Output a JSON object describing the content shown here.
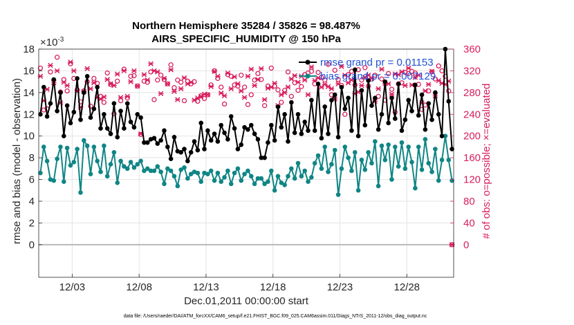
{
  "chart_data": {
    "type": "line",
    "title": "Northern Hemisphere 35284 / 35826 = 98.487%",
    "subtitle": "AIRS_SPECIFIC_HUMIDITY @ 150 hPa",
    "xlabel": "Dec.01,2011 00:00:00 start",
    "ylabel_left": "rmse and bias (model - observation)",
    "ylabel_right": "# of obs: o=possible; ×=evaluated",
    "left_scale_label": "×10",
    "left_scale_exponent": "-3",
    "footnote": "data file: /Users/raeder/DAI/ATM_forcXX/CAM6_setup/f.e21.FHIST_BGC.f09_025.CAM6assim.011/Diags_NTrS_2011-12/obs_diag_output.nc",
    "xlim": [
      0.5,
      31.5
    ],
    "ylim_left": [
      -3,
      18
    ],
    "ylim_right": [
      -60,
      360
    ],
    "x_ticks": [
      {
        "value": 3,
        "label": "12/03"
      },
      {
        "value": 8,
        "label": "12/08"
      },
      {
        "value": 13,
        "label": "12/13"
      },
      {
        "value": 18,
        "label": "12/18"
      },
      {
        "value": 23,
        "label": "12/23"
      },
      {
        "value": 28,
        "label": "12/28"
      }
    ],
    "y_ticks_left": [
      0,
      2,
      4,
      6,
      8,
      10,
      12,
      14,
      16,
      18
    ],
    "y_ticks_right": [
      0,
      40,
      80,
      120,
      160,
      200,
      240,
      280,
      320,
      360
    ],
    "grid": true,
    "legend_position": "top-right",
    "colors": {
      "rmse": "#000000",
      "bias": "#108585",
      "obs": "#d81e5b",
      "legend_text": "#1f4fd8",
      "zero_line": "#b8b8b8"
    },
    "x": [
      0.625,
      0.875,
      1.125,
      1.375,
      1.625,
      1.875,
      2.125,
      2.375,
      2.625,
      2.875,
      3.125,
      3.375,
      3.625,
      3.875,
      4.125,
      4.375,
      4.625,
      4.875,
      5.125,
      5.375,
      5.625,
      5.875,
      6.125,
      6.375,
      6.625,
      6.875,
      7.125,
      7.375,
      7.625,
      7.875,
      8.125,
      8.375,
      8.625,
      8.875,
      9.125,
      9.375,
      9.625,
      9.875,
      10.125,
      10.375,
      10.625,
      10.875,
      11.125,
      11.375,
      11.625,
      11.875,
      12.125,
      12.375,
      12.625,
      12.875,
      13.125,
      13.375,
      13.625,
      13.875,
      14.125,
      14.375,
      14.625,
      14.875,
      15.125,
      15.375,
      15.625,
      15.875,
      16.125,
      16.375,
      16.625,
      16.875,
      17.125,
      17.375,
      17.625,
      17.875,
      18.125,
      18.375,
      18.625,
      18.875,
      19.125,
      19.375,
      19.625,
      19.875,
      20.125,
      20.375,
      20.625,
      20.875,
      21.125,
      21.375,
      21.625,
      21.875,
      22.125,
      22.375,
      22.625,
      22.875,
      23.125,
      23.375,
      23.625,
      23.875,
      24.125,
      24.375,
      24.625,
      24.875,
      25.125,
      25.375,
      25.625,
      25.875,
      26.125,
      26.375,
      26.625,
      26.875,
      27.125,
      27.375,
      27.625,
      27.875,
      28.125,
      28.375,
      28.625,
      28.875,
      29.125,
      29.375,
      29.625,
      29.875,
      30.125,
      30.375,
      30.625,
      30.875,
      31.125,
      31.375
    ],
    "series": [
      {
        "name": "rmse",
        "legend_label": "rmse grand pr = 0.01153",
        "units_scale": "1e-3",
        "values": [
          12.0,
          14.5,
          11.8,
          13.0,
          15.2,
          12.3,
          14.0,
          10.0,
          12.8,
          11.2,
          12.2,
          15.3,
          11.5,
          14.0,
          15.5,
          11.7,
          12.5,
          14.5,
          10.7,
          12.0,
          10.7,
          10.2,
          13.0,
          9.9,
          12.3,
          10.7,
          13.0,
          11.3,
          10.8,
          12.0,
          11.7,
          9.4,
          9.4,
          9.7,
          9.8,
          9.3,
          9.6,
          10.5,
          9.0,
          7.9,
          9.9,
          8.6,
          8.5,
          8.8,
          7.7,
          8.5,
          9.5,
          8.7,
          11.2,
          8.8,
          10.5,
          9.6,
          10.2,
          9.5,
          11.0,
          10.3,
          9.7,
          11.8,
          10.7,
          8.8,
          9.2,
          10.8,
          10.6,
          11.0,
          10.2,
          9.7,
          8.0,
          8.0,
          9.4,
          11.0,
          9.6,
          12.7,
          10.8,
          12.0,
          9.5,
          13.1,
          10.3,
          12.0,
          10.2,
          11.3,
          10.5,
          13.3,
          10.5,
          14.8,
          9.8,
          12.7,
          10.2,
          13.3,
          13.8,
          9.9,
          14.5,
          12.5,
          13.5,
          10.5,
          16.1,
          10.0,
          14.2,
          11.0,
          15.1,
          12.8,
          13.5,
          10.6,
          12.0,
          15.0,
          11.2,
          13.5,
          11.6,
          14.8,
          10.5,
          11.5,
          13.3,
          12.3,
          14.7,
          11.9,
          13.8,
          10.6,
          13.0,
          11.5,
          14.0,
          12.0,
          10.0,
          18.0,
          13.2,
          8.8
        ]
      },
      {
        "name": "bias",
        "legend_label": "bias grand pr = 0.007129",
        "units_scale": "1e-3",
        "values": [
          6.6,
          9.0,
          7.7,
          6.0,
          5.9,
          7.9,
          9.0,
          5.8,
          8.9,
          7.3,
          7.6,
          8.8,
          4.8,
          9.6,
          9.1,
          6.5,
          9.0,
          7.7,
          6.7,
          9.1,
          6.3,
          7.4,
          8.5,
          5.7,
          7.7,
          7.2,
          7.0,
          7.6,
          7.1,
          7.4,
          7.7,
          6.8,
          7.0,
          6.8,
          6.8,
          7.2,
          6.7,
          5.6,
          7.0,
          6.8,
          6.3,
          5.4,
          6.9,
          7.1,
          6.1,
          6.5,
          6.7,
          6.6,
          5.8,
          6.6,
          6.5,
          6.8,
          5.9,
          6.6,
          5.8,
          6.2,
          6.8,
          5.6,
          6.6,
          7.0,
          5.9,
          6.5,
          6.8,
          6.3,
          5.6,
          6.1,
          6.1,
          5.6,
          5.8,
          6.8,
          5.0,
          6.3,
          5.7,
          5.5,
          6.3,
          7.0,
          6.1,
          7.5,
          6.3,
          6.8,
          5.8,
          6.2,
          7.5,
          8.2,
          7.0,
          9.0,
          6.7,
          7.4,
          8.7,
          4.6,
          7.0,
          9.0,
          8.0,
          6.8,
          8.5,
          5.0,
          7.8,
          6.9,
          8.5,
          7.5,
          9.5,
          5.4,
          9.1,
          7.8,
          9.2,
          6.0,
          9.0,
          7.2,
          9.4,
          7.0,
          9.0,
          7.6,
          5.2,
          9.0,
          6.9,
          9.7,
          7.5,
          6.7,
          8.8,
          5.9,
          7.8,
          10.0,
          7.8,
          5.9
        ]
      },
      {
        "name": "obs_possible",
        "legend_label": "o=possible",
        "values": [
          325,
          248,
          250,
          318,
          303,
          345,
          281,
          304,
          283,
          333,
          306,
          285,
          263,
          283,
          300,
          255,
          306,
          297,
          273,
          262,
          316,
          295,
          241,
          301,
          265,
          323,
          270,
          310,
          311,
          292,
          203,
          301,
          299,
          318,
          267,
          303,
          312,
          304,
          296,
          331,
          289,
          303,
          299,
          265,
          301,
          296,
          300,
          264,
          274,
          269,
          276,
          294,
          320,
          306,
          290,
          259,
          313,
          310,
          294,
          292,
          312,
          290,
          258,
          276,
          303,
          315,
          304,
          256,
          292,
          325,
          292,
          285,
          262,
          284,
          318,
          273,
          298,
          284,
          291,
          313,
          316,
          319,
          296,
          317,
          308,
          303,
          332,
          276,
          321,
          304,
          293,
          240,
          313,
          319,
          294,
          322,
          303,
          326,
          292,
          305,
          312,
          273,
          305,
          266,
          315,
          286,
          244,
          296,
          298,
          317,
          315,
          319,
          316,
          295,
          249,
          257,
          283,
          318,
          305,
          329,
          320,
          310,
          283,
          0
        ]
      },
      {
        "name": "obs_evaluated",
        "legend_label": "×=evaluated",
        "values": [
          310,
          265,
          286,
          330,
          298,
          320,
          261,
          299,
          293,
          336,
          320,
          283,
          253,
          282,
          324,
          287,
          298,
          271,
          268,
          272,
          304,
          296,
          293,
          314,
          271,
          320,
          273,
          300,
          320,
          292,
          204,
          313,
          303,
          333,
          320,
          318,
          278,
          306,
          296,
          322,
          282,
          267,
          287,
          307,
          296,
          299,
          266,
          270,
          273,
          277,
          276,
          291,
          319,
          310,
          279,
          274,
          316,
          287,
          309,
          296,
          283,
          271,
          310,
          323,
          293,
          304,
          324,
          267,
          288,
          290,
          297,
          256,
          276,
          280,
          290,
          305,
          311,
          299,
          310,
          303,
          276,
          327,
          302,
          307,
          290,
          295,
          291,
          287,
          268,
          296,
          328,
          312,
          298,
          303,
          278,
          281,
          293,
          308,
          312,
          306,
          264,
          287,
          323,
          297,
          296,
          277,
          314,
          313,
          318,
          293,
          325,
          294,
          308,
          312,
          261,
          283,
          295,
          319,
          274,
          302,
          297,
          295,
          301,
          0
        ]
      }
    ]
  }
}
